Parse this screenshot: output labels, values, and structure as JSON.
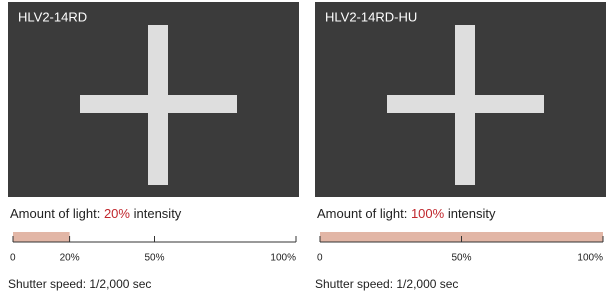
{
  "panels": [
    {
      "label": "HLV2-14RD",
      "light_prefix": "Amount of light:",
      "intensity": 20,
      "intensity_label": "20%",
      "light_suffix": "intensity",
      "xlim": [
        0,
        100
      ],
      "xticks": [
        0,
        {
          "value": 20,
          "label": "20%"
        },
        {
          "value": 50,
          "label": "50%"
        },
        {
          "value": 100,
          "label": "100%"
        }
      ],
      "shutter": "Shutter speed: 1/2,000 sec"
    },
    {
      "label": "HLV2-14RD-HU",
      "light_prefix": "Amount of light:",
      "intensity": 100,
      "intensity_label": "100%",
      "light_suffix": "intensity",
      "xlim": [
        0,
        100
      ],
      "xticks": [
        0,
        {
          "value": 50,
          "label": "50%"
        },
        {
          "value": 100,
          "label": "100%"
        }
      ],
      "shutter": "Shutter speed: 1/2,000 sec"
    }
  ]
}
